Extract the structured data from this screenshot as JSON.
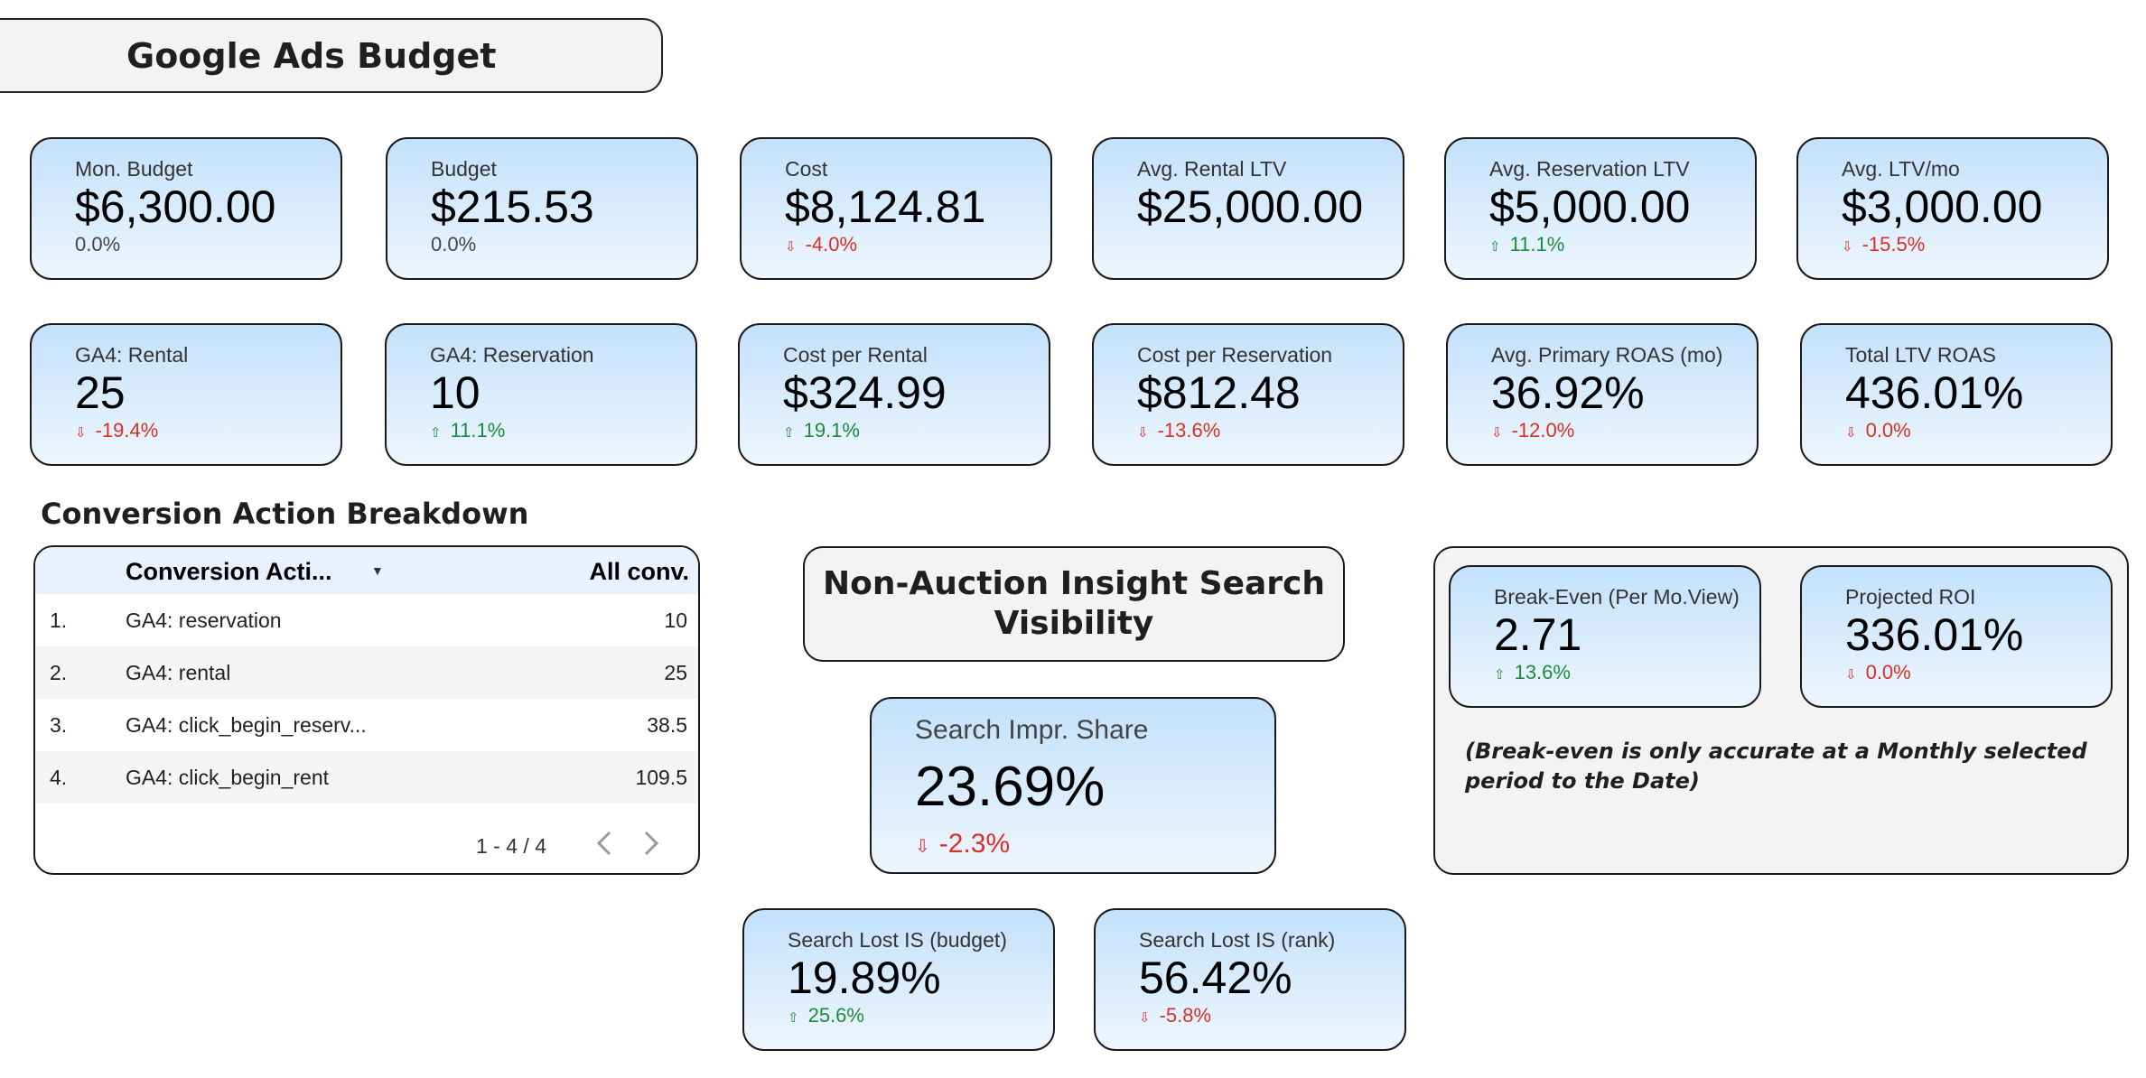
{
  "page_title": "Google Ads Budget",
  "kpi_row1": [
    {
      "label": "Mon. Budget",
      "value": "$6,300.00",
      "change": "0.0%",
      "direction": "neutral"
    },
    {
      "label": "Budget",
      "value": "$215.53",
      "change": "0.0%",
      "direction": "neutral"
    },
    {
      "label": "Cost",
      "value": "$8,124.81",
      "change": "-4.0%",
      "direction": "down"
    },
    {
      "label": "Avg. Rental LTV",
      "value": "$25,000.00",
      "change": "",
      "direction": "none"
    },
    {
      "label": "Avg. Reservation LTV",
      "value": "$5,000.00",
      "change": "11.1%",
      "direction": "up"
    },
    {
      "label": "Avg. LTV/mo",
      "value": "$3,000.00",
      "change": "-15.5%",
      "direction": "down"
    }
  ],
  "kpi_row2": [
    {
      "label": "GA4: Rental",
      "value": "25",
      "change": "-19.4%",
      "direction": "down"
    },
    {
      "label": "GA4: Reservation",
      "value": "10",
      "change": "11.1%",
      "direction": "up"
    },
    {
      "label": "Cost per Rental",
      "value": "$324.99",
      "change": "19.1%",
      "direction": "up"
    },
    {
      "label": "Cost per Reservation",
      "value": "$812.48",
      "change": "-13.6%",
      "direction": "down"
    },
    {
      "label": "Avg. Primary ROAS (mo)",
      "value": "36.92%",
      "change": "-12.0%",
      "direction": "down"
    },
    {
      "label": "Total LTV ROAS",
      "value": "436.01%",
      "change": "0.0%",
      "direction": "down"
    }
  ],
  "conversion_table": {
    "section_title": "Conversion Action Breakdown",
    "col_name": "Conversion Acti...",
    "col_value": "All conv.",
    "rows": [
      {
        "n": "1.",
        "action": "GA4: reservation",
        "value": "10"
      },
      {
        "n": "2.",
        "action": "GA4: rental",
        "value": "25"
      },
      {
        "n": "3.",
        "action": "GA4: click_begin_reserv...",
        "value": "38.5"
      },
      {
        "n": "4.",
        "action": "GA4: click_begin_rent",
        "value": "109.5"
      }
    ],
    "pagination": "1 - 4 / 4"
  },
  "non_auction": {
    "title": "Non-Auction Insight Search Visibility",
    "impr_share": {
      "label": "Search Impr. Share",
      "value": "23.69%",
      "change": "-2.3%",
      "direction": "down"
    },
    "lost_budget": {
      "label": "Search Lost IS (budget)",
      "value": "19.89%",
      "change": "25.6%",
      "direction": "up"
    },
    "lost_rank": {
      "label": "Search Lost IS (rank)",
      "value": "56.42%",
      "change": "-5.8%",
      "direction": "down"
    }
  },
  "break_even": {
    "card1": {
      "label": "Break-Even (Per Mo.View)",
      "value": "2.71",
      "change": "13.6%",
      "direction": "up"
    },
    "card2": {
      "label": "Projected ROI",
      "value": "336.01%",
      "change": "0.0%",
      "direction": "down"
    },
    "note": "(Break-even is only accurate at a Monthly selected period to the Date)"
  },
  "colors": {
    "up": "#1f8a3b",
    "down": "#d93025",
    "card_top": "#c3e1fb",
    "card_bottom": "#eef6fe"
  }
}
